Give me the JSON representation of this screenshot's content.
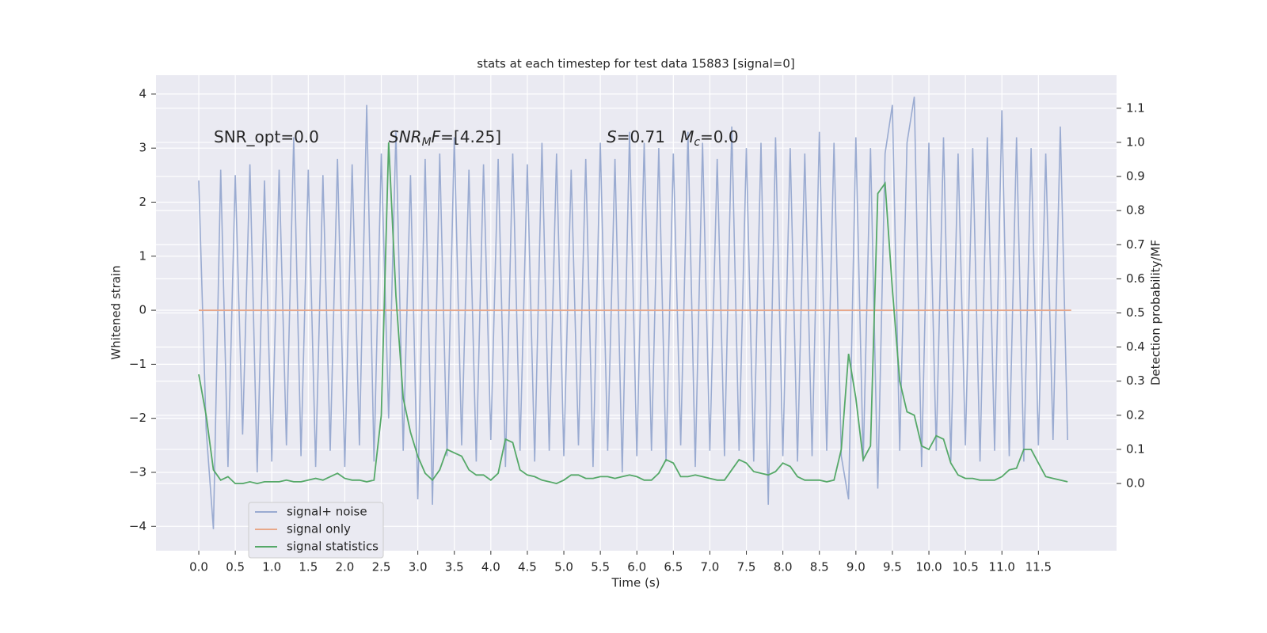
{
  "chart_data": {
    "type": "line",
    "title": "stats at each timestep for test data 15883 [signal=0]",
    "xlabel": "Time (s)",
    "ylabel": "Whitened strain",
    "y2label": "Detection probability/MF",
    "grid": true,
    "legend": "lower left",
    "annotations": [
      [
        {
          "text": "SNR_opt=0.0",
          "italic": false,
          "sub": false
        }
      ],
      [
        {
          "text": "SNR",
          "italic": true,
          "sub": false
        },
        {
          "text": "M",
          "italic": true,
          "sub": true
        },
        {
          "text": "F",
          "italic": true,
          "sub": false
        },
        {
          "text": "=[4.25]",
          "italic": false,
          "sub": false
        }
      ],
      [
        {
          "text": "S",
          "italic": true,
          "sub": false
        },
        {
          "text": "=0.71   ",
          "italic": false,
          "sub": false
        },
        {
          "text": "M",
          "italic": true,
          "sub": false
        },
        {
          "text": "c",
          "italic": true,
          "sub": true
        },
        {
          "text": "=0.0",
          "italic": false,
          "sub": false
        }
      ]
    ],
    "xlim": [
      -0.586,
      12.57
    ],
    "ylim": [
      -4.45,
      4.35
    ],
    "y2lim": [
      -0.197,
      1.197
    ],
    "xticks": [
      {
        "value": 0,
        "label": "0.0"
      },
      0.5,
      {
        "value": 1,
        "label": "1.0"
      },
      1.5,
      {
        "value": 2,
        "label": "2.0"
      },
      2.5,
      {
        "value": 3,
        "label": "3.0"
      },
      3.5,
      {
        "value": 4,
        "label": "4.0"
      },
      4.5,
      {
        "value": 5,
        "label": "5.0"
      },
      5.5,
      {
        "value": 6,
        "label": "6.0"
      },
      6.5,
      {
        "value": 7,
        "label": "7.0"
      },
      7.5,
      {
        "value": 8,
        "label": "8.0"
      },
      8.5,
      {
        "value": 9,
        "label": "9.0"
      },
      9.5,
      {
        "value": 10,
        "label": "10.0"
      },
      10.5,
      {
        "value": 11,
        "label": "11.0"
      },
      11.5
    ],
    "yticks": [
      {
        "value": -4,
        "label": "−4"
      },
      {
        "value": -3,
        "label": "−3"
      },
      {
        "value": -2,
        "label": "−2"
      },
      {
        "value": -1,
        "label": "−1"
      },
      0,
      1,
      2,
      3,
      4
    ],
    "y2ticks": [
      {
        "value": 0,
        "label": "0.0"
      },
      0.1,
      0.2,
      0.3,
      0.4,
      0.5,
      0.6,
      0.7,
      0.8,
      0.9,
      {
        "value": 1,
        "label": "1.0"
      },
      1.1
    ],
    "x": [
      0.0,
      0.1,
      0.2,
      0.3,
      0.4,
      0.5,
      0.6,
      0.7,
      0.8,
      0.9,
      1.0,
      1.1,
      1.2,
      1.3,
      1.4,
      1.5,
      1.6,
      1.7,
      1.8,
      1.9,
      2.0,
      2.1,
      2.2,
      2.3,
      2.4,
      2.5,
      2.6,
      2.7,
      2.8,
      2.9,
      3.0,
      3.1,
      3.2,
      3.3,
      3.4,
      3.5,
      3.6,
      3.7,
      3.8,
      3.9,
      4.0,
      4.1,
      4.2,
      4.3,
      4.4,
      4.5,
      4.6,
      4.7,
      4.8,
      4.9,
      5.0,
      5.1,
      5.2,
      5.3,
      5.4,
      5.5,
      5.6,
      5.7,
      5.8,
      5.9,
      6.0,
      6.1,
      6.2,
      6.3,
      6.4,
      6.5,
      6.6,
      6.7,
      6.8,
      6.9,
      7.0,
      7.1,
      7.2,
      7.3,
      7.4,
      7.5,
      7.6,
      7.7,
      7.8,
      7.9,
      8.0,
      8.1,
      8.2,
      8.3,
      8.4,
      8.5,
      8.6,
      8.7,
      8.8,
      8.9,
      9.0,
      9.1,
      9.2,
      9.3,
      9.4,
      9.5,
      9.6,
      9.7,
      9.8,
      9.9,
      10.0,
      10.1,
      10.2,
      10.3,
      10.4,
      10.5,
      10.6,
      10.7,
      10.8,
      10.9,
      11.0,
      11.1,
      11.2,
      11.3,
      11.4,
      11.5,
      11.6,
      11.7,
      11.8,
      11.9
    ],
    "series": [
      {
        "name": "signal+ noise",
        "color": "#9aabd1",
        "values": [
          2.4,
          -2.2,
          -4.05,
          2.6,
          -2.9,
          2.5,
          -2.3,
          2.7,
          -3.0,
          2.4,
          -2.8,
          2.6,
          -2.5,
          3.2,
          -2.7,
          2.6,
          -2.9,
          2.5,
          -2.6,
          2.8,
          -2.9,
          2.7,
          -2.5,
          3.8,
          -2.8,
          2.9,
          -2.0,
          3.3,
          -2.6,
          2.5,
          -3.5,
          2.8,
          -3.6,
          2.9,
          -2.7,
          3.2,
          -2.5,
          2.6,
          -2.8,
          2.7,
          -2.4,
          2.8,
          -2.9,
          2.9,
          -2.6,
          2.7,
          -2.8,
          3.1,
          -2.6,
          2.9,
          -2.7,
          2.6,
          -2.5,
          2.8,
          -2.9,
          3.1,
          -2.6,
          2.8,
          -3.0,
          3.3,
          -2.7,
          3.1,
          -2.6,
          3.0,
          -2.8,
          2.9,
          -2.5,
          3.3,
          -2.9,
          3.1,
          -2.6,
          2.8,
          -2.7,
          3.4,
          -2.6,
          3.0,
          -2.8,
          3.1,
          -3.6,
          3.2,
          -2.7,
          3.0,
          -2.8,
          2.9,
          -2.7,
          3.3,
          -2.6,
          3.1,
          -2.7,
          -3.5,
          3.2,
          -2.8,
          3.0,
          -3.3,
          2.9,
          3.8,
          -2.6,
          3.1,
          3.95,
          -2.9,
          3.1,
          -2.6,
          3.2,
          -2.8,
          2.9,
          -2.5,
          3.0,
          -2.8,
          3.2,
          -2.6,
          3.7,
          -2.7,
          3.2,
          -2.8,
          3.0,
          -2.5,
          2.9,
          -2.4,
          3.4,
          -2.4
        ]
      },
      {
        "name": "signal only",
        "color": "#e8a88a",
        "x": [
          0,
          11.95
        ],
        "values": [
          0,
          0
        ]
      },
      {
        "name": "signal statistics",
        "color": "#55a868",
        "axis": "y2",
        "values": [
          0.32,
          0.2,
          0.04,
          0.01,
          0.02,
          0.0,
          0.0,
          0.005,
          0.0,
          0.005,
          0.005,
          0.005,
          0.01,
          0.005,
          0.005,
          0.01,
          0.015,
          0.01,
          0.02,
          0.03,
          0.015,
          0.01,
          0.01,
          0.005,
          0.01,
          0.2,
          1.0,
          0.55,
          0.25,
          0.15,
          0.08,
          0.03,
          0.01,
          0.04,
          0.1,
          0.09,
          0.08,
          0.04,
          0.025,
          0.025,
          0.01,
          0.03,
          0.13,
          0.12,
          0.04,
          0.025,
          0.02,
          0.01,
          0.005,
          0.0,
          0.01,
          0.025,
          0.025,
          0.015,
          0.015,
          0.02,
          0.02,
          0.015,
          0.02,
          0.025,
          0.02,
          0.01,
          0.01,
          0.03,
          0.07,
          0.06,
          0.02,
          0.02,
          0.025,
          0.02,
          0.015,
          0.01,
          0.01,
          0.04,
          0.07,
          0.06,
          0.035,
          0.03,
          0.025,
          0.035,
          0.06,
          0.05,
          0.02,
          0.01,
          0.01,
          0.01,
          0.005,
          0.01,
          0.1,
          0.38,
          0.25,
          0.07,
          0.11,
          0.85,
          0.88,
          0.57,
          0.3,
          0.21,
          0.2,
          0.11,
          0.1,
          0.14,
          0.13,
          0.06,
          0.025,
          0.015,
          0.015,
          0.01,
          0.01,
          0.01,
          0.02,
          0.04,
          0.045,
          0.1,
          0.1,
          0.06,
          0.02,
          0.015,
          0.01,
          0.005
        ]
      }
    ]
  }
}
